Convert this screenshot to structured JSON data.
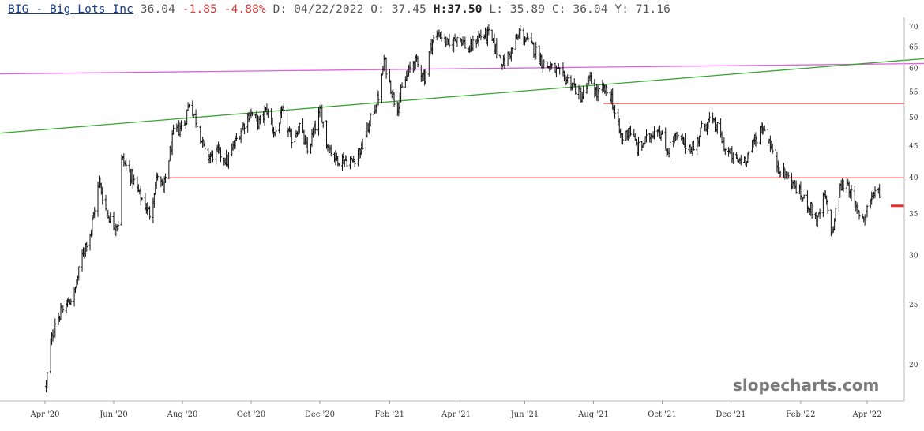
{
  "header": {
    "symbol": "BIG - Big Lots Inc",
    "last": "36.04",
    "change": "-1.85",
    "change_pct": "-4.88%",
    "date": "D: 04/22/2022",
    "open": "O: 37.45",
    "high_label": "H:",
    "high": "37.50",
    "low": "L: 35.89",
    "close": "C: 36.04",
    "yield": "Y: 71.16"
  },
  "watermark": "slopecharts.com",
  "colors": {
    "bars": "#111111",
    "red_line": "#e03030",
    "green_line": "#3aa531",
    "magenta_line": "#e060e0",
    "axis": "#999999",
    "negative": "#d23b3b",
    "symbol": "#1a3c8f"
  },
  "chart_data": {
    "type": "ohlc",
    "scale": "log",
    "y_ticks": [
      20,
      25,
      30,
      35,
      40,
      45,
      50,
      55,
      60,
      65,
      70
    ],
    "y_tick_labels": [
      "20",
      "25",
      "30",
      "35",
      "40",
      "45",
      "50",
      "55",
      "60",
      "65",
      "70"
    ],
    "x_tick_labels": [
      "Apr '20",
      "Jun '20",
      "Aug '20",
      "Oct '20",
      "Dec '20",
      "Feb '21",
      "Apr '21",
      "Jun '21",
      "Aug '21",
      "Oct '21",
      "Dec '21",
      "Feb '22",
      "Apr '22"
    ],
    "x_tick_dates": [
      "2020-04-01",
      "2020-06-01",
      "2020-08-01",
      "2020-10-01",
      "2020-12-01",
      "2021-02-01",
      "2021-04-01",
      "2021-06-01",
      "2021-08-01",
      "2021-10-01",
      "2021-12-01",
      "2022-02-01",
      "2022-04-01"
    ],
    "price_path": [
      [
        "2020-04-02",
        18.5
      ],
      [
        "2020-04-06",
        21.5
      ],
      [
        "2020-04-10",
        23.5
      ],
      [
        "2020-04-17",
        24.5
      ],
      [
        "2020-04-27",
        26.0
      ],
      [
        "2020-05-05",
        30.5
      ],
      [
        "2020-05-12",
        33.0
      ],
      [
        "2020-05-19",
        39.5
      ],
      [
        "2020-05-24",
        36.0
      ],
      [
        "2020-05-31",
        33.5
      ],
      [
        "2020-06-07",
        34.0
      ],
      [
        "2020-06-08",
        43.0
      ],
      [
        "2020-06-16",
        40.5
      ],
      [
        "2020-06-24",
        37.5
      ],
      [
        "2020-07-03",
        35.0
      ],
      [
        "2020-07-10",
        40.5
      ],
      [
        "2020-07-15",
        38.0
      ],
      [
        "2020-07-24",
        47.0
      ],
      [
        "2020-08-03",
        49.0
      ],
      [
        "2020-08-07",
        53.0
      ],
      [
        "2020-08-14",
        49.0
      ],
      [
        "2020-08-22",
        43.0
      ],
      [
        "2020-09-02",
        44.0
      ],
      [
        "2020-09-10",
        42.5
      ],
      [
        "2020-09-20",
        47.0
      ],
      [
        "2020-09-30",
        51.0
      ],
      [
        "2020-10-08",
        49.0
      ],
      [
        "2020-10-15",
        51.5
      ],
      [
        "2020-10-22",
        47.0
      ],
      [
        "2020-10-29",
        51.0
      ],
      [
        "2020-11-05",
        46.0
      ],
      [
        "2020-11-13",
        48.5
      ],
      [
        "2020-11-20",
        44.0
      ],
      [
        "2020-12-02",
        51.5
      ],
      [
        "2020-12-07",
        45.5
      ],
      [
        "2020-12-15",
        43.0
      ],
      [
        "2020-12-30",
        42.5
      ],
      [
        "2021-01-08",
        45.0
      ],
      [
        "2021-01-15",
        49.5
      ],
      [
        "2021-01-24",
        55.5
      ],
      [
        "2021-01-27",
        62.0
      ],
      [
        "2021-02-02",
        56.0
      ],
      [
        "2021-02-07",
        51.5
      ],
      [
        "2021-02-14",
        57.0
      ],
      [
        "2021-02-23",
        62.0
      ],
      [
        "2021-03-04",
        58.0
      ],
      [
        "2021-03-10",
        66.0
      ],
      [
        "2021-03-17",
        68.5
      ],
      [
        "2021-03-26",
        65.0
      ],
      [
        "2021-04-03",
        68.0
      ],
      [
        "2021-04-12",
        64.0
      ],
      [
        "2021-04-21",
        67.5
      ],
      [
        "2021-04-30",
        68.0
      ],
      [
        "2021-05-07",
        64.0
      ],
      [
        "2021-05-13",
        61.0
      ],
      [
        "2021-05-21",
        64.5
      ],
      [
        "2021-05-28",
        68.5
      ],
      [
        "2021-06-04",
        66.0
      ],
      [
        "2021-06-11",
        64.0
      ],
      [
        "2021-06-18",
        61.0
      ],
      [
        "2021-06-28",
        59.5
      ],
      [
        "2021-07-05",
        58.0
      ],
      [
        "2021-07-12",
        57.0
      ],
      [
        "2021-07-18",
        55.0
      ],
      [
        "2021-07-22",
        54.0
      ],
      [
        "2021-07-29",
        57.5
      ],
      [
        "2021-08-04",
        54.5
      ],
      [
        "2021-08-10",
        55.5
      ],
      [
        "2021-08-17",
        54.0
      ],
      [
        "2021-08-20",
        50.5
      ],
      [
        "2021-08-26",
        46.0
      ],
      [
        "2021-09-02",
        48.0
      ],
      [
        "2021-09-09",
        44.5
      ],
      [
        "2021-09-17",
        46.0
      ],
      [
        "2021-09-27",
        48.5
      ],
      [
        "2021-10-05",
        44.0
      ],
      [
        "2021-10-12",
        46.5
      ],
      [
        "2021-10-20",
        45.5
      ],
      [
        "2021-10-29",
        44.5
      ],
      [
        "2021-11-05",
        48.0
      ],
      [
        "2021-11-12",
        49.5
      ],
      [
        "2021-11-19",
        48.0
      ],
      [
        "2021-11-26",
        44.5
      ],
      [
        "2021-12-06",
        42.5
      ],
      [
        "2021-12-14",
        43.0
      ],
      [
        "2021-12-20",
        45.0
      ],
      [
        "2021-12-29",
        48.5
      ],
      [
        "2022-01-04",
        46.0
      ],
      [
        "2022-01-11",
        42.0
      ],
      [
        "2022-01-18",
        40.5
      ],
      [
        "2022-01-26",
        39.0
      ],
      [
        "2022-02-03",
        37.0
      ],
      [
        "2022-02-09",
        36.0
      ],
      [
        "2022-02-16",
        34.0
      ],
      [
        "2022-02-22",
        37.5
      ],
      [
        "2022-03-01",
        32.5
      ],
      [
        "2022-03-08",
        38.5
      ],
      [
        "2022-03-14",
        39.5
      ],
      [
        "2022-03-22",
        35.5
      ],
      [
        "2022-03-29",
        34.5
      ],
      [
        "2022-04-05",
        37.5
      ],
      [
        "2022-04-12",
        38.0
      ],
      [
        "2022-04-19",
        37.0
      ],
      [
        "2022-04-22",
        36.04
      ]
    ],
    "overlays": [
      {
        "kind": "hline",
        "color": "red",
        "value": 52.7,
        "from": "2021-08-10",
        "to": "2022-06-01"
      },
      {
        "kind": "hline",
        "color": "red",
        "value": 40.0,
        "from": "2020-07-20",
        "to": "2022-06-01"
      },
      {
        "kind": "hline_thick",
        "color": "red",
        "value": 36.04,
        "from": "2022-04-22",
        "to": "2022-06-01"
      },
      {
        "kind": "trendline",
        "color": "magenta",
        "y_start": 58.8,
        "y_end": 61.1
      },
      {
        "kind": "trendline",
        "color": "green",
        "y_start": 47.2,
        "y_end": 62.2
      }
    ]
  }
}
